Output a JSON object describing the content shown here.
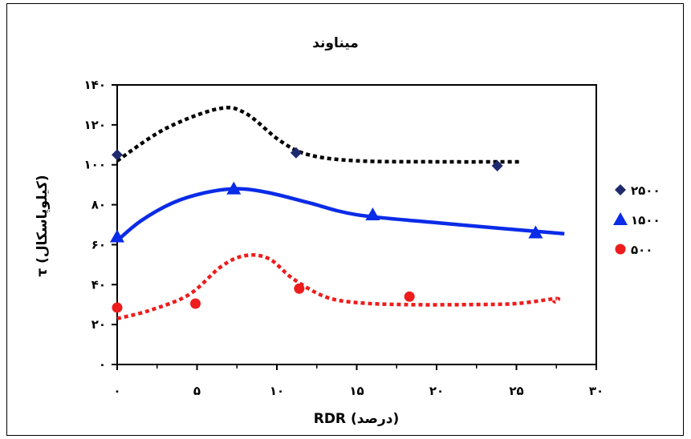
{
  "chart_data": {
    "type": "scatter",
    "title": "میناوند",
    "xlabel": "RDR (درصد)",
    "ylabel": "τ (کیلوپاسکال)",
    "xlim": [
      0,
      30
    ],
    "ylim": [
      0,
      140
    ],
    "x_ticks": [
      0,
      5,
      10,
      15,
      20,
      25,
      30
    ],
    "y_ticks": [
      0,
      20,
      40,
      60,
      80,
      100,
      120,
      140
    ],
    "x_tick_labels": [
      "۰",
      "۵",
      "۱۰",
      "۱۵",
      "۲۰",
      "۲۵",
      "۳۰"
    ],
    "y_tick_labels": [
      "۰",
      "۲۰",
      "۴۰",
      "۶۰",
      "۸۰",
      "۱۰۰",
      "۱۲۰",
      "۱۴۰"
    ],
    "legend_position": "right",
    "grid": false,
    "series": [
      {
        "name": "۲۵۰۰",
        "color": "#1f2a6e",
        "marker": "diamond",
        "points": [
          [
            0,
            105
          ],
          [
            11.2,
            106
          ],
          [
            23.8,
            99.5
          ]
        ],
        "trend_color": "#000000",
        "trend_style": "dotted",
        "trend": [
          [
            0,
            102
          ],
          [
            3,
            118
          ],
          [
            6.3,
            128
          ],
          [
            8,
            126
          ],
          [
            10.2,
            112
          ],
          [
            12,
            105
          ],
          [
            15,
            102
          ],
          [
            20,
            101.5
          ],
          [
            25.2,
            101.5
          ]
        ]
      },
      {
        "name": "۱۵۰۰",
        "color": "#0a2be8",
        "marker": "triangle",
        "points": [
          [
            0,
            64
          ],
          [
            7.3,
            88
          ],
          [
            16,
            75
          ],
          [
            26.2,
            66
          ]
        ],
        "trend_color": "#0a2be8",
        "trend_style": "solid",
        "trend": [
          [
            0,
            62
          ],
          [
            1.5,
            72
          ],
          [
            3.5,
            81
          ],
          [
            5.5,
            86
          ],
          [
            7.5,
            88
          ],
          [
            9.5,
            86
          ],
          [
            12,
            81
          ],
          [
            15,
            75
          ],
          [
            20,
            71
          ],
          [
            25,
            67.5
          ],
          [
            28,
            65.5
          ]
        ]
      },
      {
        "name": "۵۰۰",
        "color": "#ee1c1c",
        "marker": "circle",
        "points": [
          [
            0,
            28.5
          ],
          [
            4.9,
            30.5
          ],
          [
            11.4,
            38
          ],
          [
            18.3,
            34
          ]
        ],
        "trend_color": "#ee1c1c",
        "trend_style": "dotted",
        "trend": [
          [
            0,
            23
          ],
          [
            2,
            27
          ],
          [
            4.5,
            35
          ],
          [
            6.5,
            49
          ],
          [
            8,
            54.5
          ],
          [
            9.5,
            53
          ],
          [
            11,
            43
          ],
          [
            13,
            34
          ],
          [
            15,
            31
          ],
          [
            18,
            30
          ],
          [
            22,
            30
          ],
          [
            25,
            30.5
          ],
          [
            27.5,
            33
          ],
          [
            27.3,
            31
          ]
        ]
      }
    ]
  }
}
